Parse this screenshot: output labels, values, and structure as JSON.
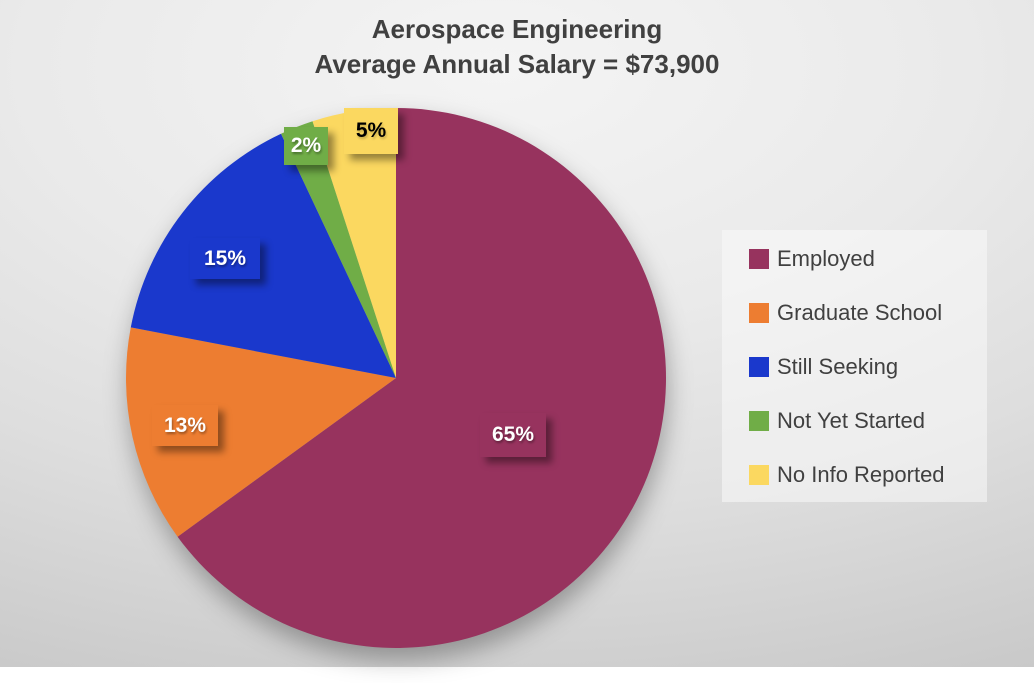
{
  "chart_data": {
    "type": "pie",
    "title": "Aerospace Engineering",
    "subtitle": "Average Annual Salary = $73,900",
    "categories": [
      "Employed",
      "Graduate School",
      "Still Seeking",
      "Not Yet Started",
      "No Info Reported"
    ],
    "values": [
      65,
      13,
      15,
      2,
      5
    ],
    "value_labels": [
      "65%",
      "13%",
      "15%",
      "2%",
      "5%"
    ],
    "colors": [
      "#97335E",
      "#ED7D31",
      "#1A38CC",
      "#70AD47",
      "#FBD860"
    ],
    "value_label_text_colors": [
      "#FFFFFF",
      "#FFFFFF",
      "#FFFFFF",
      "#FFFFFF",
      "#000000"
    ],
    "start_angle_deg": 0,
    "direction": "clockwise",
    "legend_position": "right",
    "title_color": "#404040",
    "legend_text_color": "#404040"
  }
}
